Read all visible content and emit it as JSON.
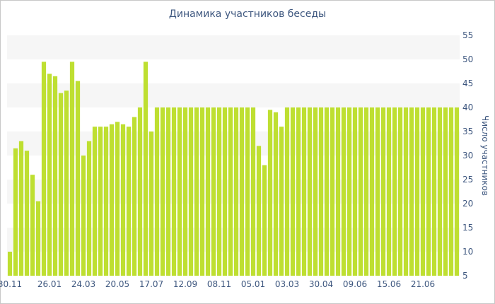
{
  "chart_data": {
    "type": "bar",
    "title": "Динамика участников беседы",
    "ylabel": "Число участников",
    "xlabel": "",
    "ylim": [
      5,
      55
    ],
    "yticks": [
      5,
      10,
      15,
      20,
      25,
      30,
      35,
      40,
      45,
      50,
      55
    ],
    "y_axis_position": "right",
    "bar_color": "#bedf31",
    "band_color": "#f6f6f6",
    "xticks": [
      {
        "label": "30.11",
        "index": 0
      },
      {
        "label": "26.01",
        "index": 7
      },
      {
        "label": "24.03",
        "index": 13
      },
      {
        "label": "20.05",
        "index": 19
      },
      {
        "label": "17.07",
        "index": 25
      },
      {
        "label": "12.09",
        "index": 31
      },
      {
        "label": "08.11",
        "index": 37
      },
      {
        "label": "05.01",
        "index": 43
      },
      {
        "label": "03.03",
        "index": 49
      },
      {
        "label": "30.04",
        "index": 55
      },
      {
        "label": "09.06",
        "index": 61
      },
      {
        "label": "15.06",
        "index": 67
      },
      {
        "label": "21.06",
        "index": 73
      }
    ],
    "values": [
      10,
      31.5,
      33,
      31,
      26,
      20.5,
      49.5,
      47,
      46.5,
      43,
      43.5,
      49.5,
      45.5,
      30,
      33,
      36,
      36,
      36,
      36.5,
      37,
      36.5,
      36,
      38,
      40,
      49.5,
      35,
      40,
      40,
      40,
      40,
      40,
      40,
      40,
      40,
      40,
      40,
      40,
      40,
      40,
      40,
      40,
      40,
      40,
      40,
      32,
      28,
      39.5,
      39,
      36,
      40,
      40,
      40,
      40,
      40,
      40,
      40,
      40,
      40,
      40,
      40,
      40,
      40,
      40,
      40,
      40,
      40,
      40,
      40,
      40,
      40,
      40,
      40,
      40,
      40,
      40,
      40,
      40,
      40,
      40,
      40
    ]
  }
}
